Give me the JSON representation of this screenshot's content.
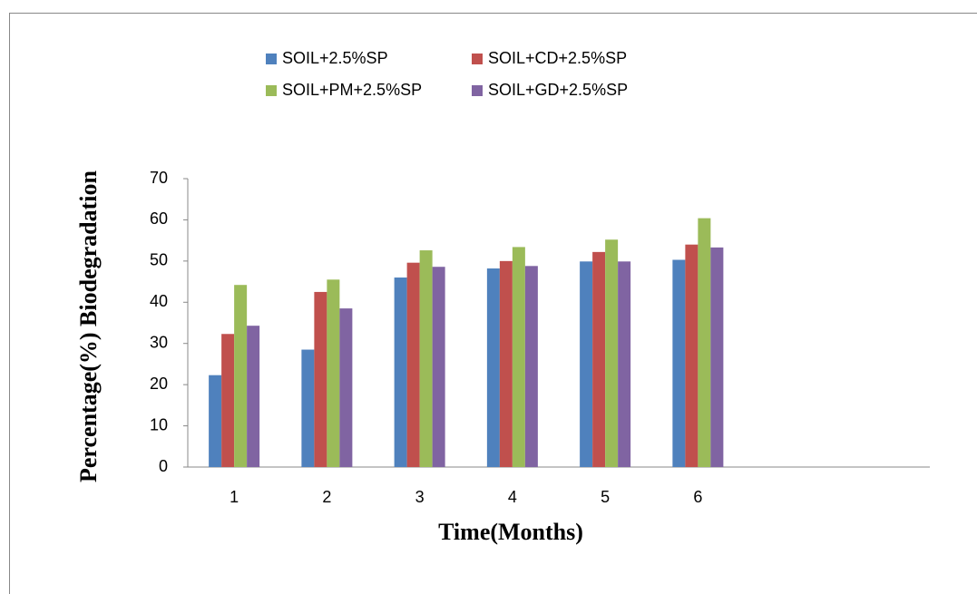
{
  "chart_data": {
    "type": "bar",
    "x_label": "Time(Months)",
    "y_label": "Percentage(%) Biodegradation",
    "categories": [
      "1",
      "2",
      "3",
      "4",
      "5",
      "6",
      null,
      null
    ],
    "series": [
      {
        "name": "SOIL+2.5%SP",
        "color": "#4f81bd",
        "values": [
          22.3,
          28.5,
          46,
          48.2,
          49.9,
          50.3,
          null,
          null
        ]
      },
      {
        "name": "SOIL+CD+2.5%SP",
        "color": "#c0504d",
        "values": [
          32.3,
          42.5,
          49.6,
          50,
          52.2,
          54,
          null,
          null
        ]
      },
      {
        "name": "SOIL+PM+2.5%SP",
        "color": "#9bbb59",
        "values": [
          44.2,
          45.5,
          52.6,
          53.4,
          55.2,
          60.4,
          null,
          null
        ]
      },
      {
        "name": "SOIL+GD+2.5%SP",
        "color": "#8064a2",
        "values": [
          34.3,
          38.5,
          48.6,
          48.8,
          49.9,
          53.3,
          null,
          null
        ]
      }
    ],
    "ylim": [
      0,
      70
    ],
    "yticks": [
      0,
      10,
      20,
      30,
      40,
      50,
      60,
      70
    ],
    "grid": false,
    "legend": "top"
  }
}
